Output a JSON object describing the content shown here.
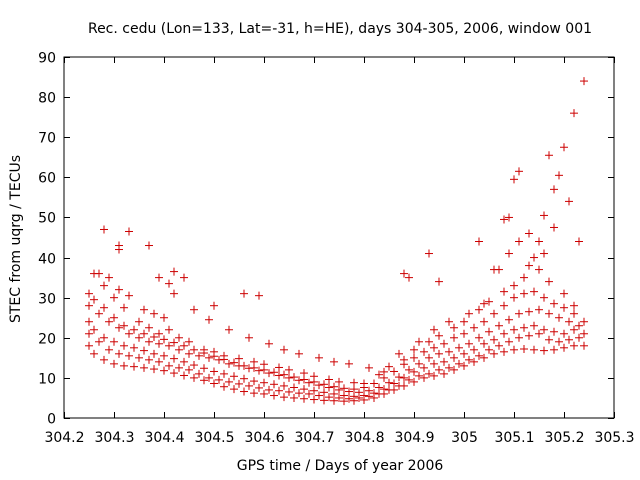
{
  "chart_data": {
    "type": "scatter",
    "title": "Rec. cedu (Lon=133, Lat=-31, h=HE), days 304-305, 2006, window 001",
    "xlabel": "GPS time / Days of year 2006",
    "ylabel": "STEC from uqrg / TECUs",
    "xlim": [
      304.2,
      305.3
    ],
    "ylim": [
      0,
      90
    ],
    "xticks": [
      304.2,
      304.3,
      304.4,
      304.5,
      304.6,
      304.7,
      304.8,
      304.9,
      305,
      305.1,
      305.2,
      305.3
    ],
    "xtick_labels": [
      "304.2",
      "304.3",
      "304.4",
      "304.5",
      "304.6",
      "304.7",
      "304.8",
      "304.9",
      "305",
      "305.1",
      "305.2",
      "305.3"
    ],
    "yticks": [
      0,
      10,
      20,
      30,
      40,
      50,
      60,
      70,
      80,
      90
    ],
    "ytick_labels": [
      "0",
      "10",
      "20",
      "30",
      "40",
      "50",
      "60",
      "70",
      "80",
      "90"
    ],
    "grid": false,
    "marker": "+",
    "color": "#cc0000",
    "series": [
      {
        "name": "STEC",
        "x": [
          304.25,
          304.26,
          304.28,
          304.3,
          304.32,
          304.34,
          304.36,
          304.38,
          304.4,
          304.42,
          304.44,
          304.46,
          304.48,
          304.5,
          304.52,
          304.54,
          304.56,
          304.58,
          304.6,
          304.62,
          304.64,
          304.66,
          304.68,
          304.7,
          304.72,
          304.74,
          304.76,
          304.78,
          304.8,
          304.82,
          304.84,
          304.86,
          304.88,
          304.9,
          304.92,
          304.94,
          304.96,
          304.98,
          305.0,
          305.02,
          305.04,
          305.06,
          305.08,
          305.1,
          305.12,
          305.14,
          305.16,
          305.18,
          305.2,
          305.22,
          305.24,
          304.25,
          304.27,
          304.29,
          304.31,
          304.33,
          304.35,
          304.37,
          304.39,
          304.41,
          304.43,
          304.45,
          304.47,
          304.49,
          304.51,
          304.53,
          304.55,
          304.57,
          304.59,
          304.61,
          304.63,
          304.65,
          304.67,
          304.69,
          304.71,
          304.73,
          304.75,
          304.77,
          304.79,
          304.81,
          304.83,
          304.85,
          304.87,
          304.89,
          304.91,
          304.93,
          304.95,
          304.97,
          304.99,
          305.01,
          305.03,
          305.05,
          305.07,
          305.09,
          305.11,
          305.13,
          305.15,
          305.17,
          305.19,
          305.21,
          305.23,
          304.25,
          304.26,
          304.28,
          304.3,
          304.32,
          304.34,
          304.36,
          304.38,
          304.4,
          304.42,
          304.44,
          304.46,
          304.48,
          304.5,
          304.52,
          304.54,
          304.56,
          304.58,
          304.6,
          304.62,
          304.64,
          304.66,
          304.68,
          304.7,
          304.72,
          304.74,
          304.76,
          304.78,
          304.8,
          304.82,
          304.84,
          304.86,
          304.88,
          304.9,
          304.92,
          304.94,
          304.96,
          304.98,
          305.0,
          305.02,
          305.04,
          305.06,
          305.08,
          305.1,
          305.12,
          305.14,
          305.16,
          305.18,
          305.2,
          305.22,
          305.24,
          304.25,
          304.27,
          304.29,
          304.31,
          304.33,
          304.35,
          304.37,
          304.39,
          304.41,
          304.43,
          304.45,
          304.47,
          304.49,
          304.51,
          304.53,
          304.55,
          304.57,
          304.59,
          304.61,
          304.63,
          304.65,
          304.67,
          304.69,
          304.71,
          304.73,
          304.75,
          304.77,
          304.79,
          304.81,
          304.83,
          304.85,
          304.87,
          304.89,
          304.91,
          304.93,
          304.95,
          304.97,
          304.99,
          305.01,
          305.03,
          305.05,
          305.07,
          305.09,
          305.11,
          305.13,
          305.15,
          305.17,
          305.19,
          305.21,
          305.23,
          304.25,
          304.26,
          304.28,
          304.3,
          304.32,
          304.34,
          304.36,
          304.38,
          304.4,
          304.42,
          304.44,
          304.46,
          304.48,
          304.5,
          304.52,
          304.54,
          304.56,
          304.58,
          304.6,
          304.62,
          304.64,
          304.66,
          304.68,
          304.7,
          304.72,
          304.74,
          304.76,
          304.78,
          304.8,
          304.82,
          304.84,
          304.86,
          304.88,
          304.9,
          304.92,
          304.94,
          304.96,
          304.98,
          305.0,
          305.02,
          305.04,
          305.06,
          305.08,
          305.1,
          305.12,
          305.14,
          305.16,
          305.18,
          305.2,
          305.22,
          305.24,
          304.26,
          304.28,
          304.3,
          304.32,
          304.35,
          304.37,
          304.39,
          304.41,
          304.43,
          304.45,
          304.48,
          304.5,
          304.52,
          304.55,
          304.58,
          304.6,
          304.63,
          304.65,
          304.68,
          304.7,
          304.73,
          304.75,
          304.78,
          304.8,
          304.83,
          304.85,
          304.88,
          304.9,
          304.93,
          304.95,
          304.98,
          305.0,
          305.03,
          305.05,
          305.08,
          305.1,
          305.12,
          305.15,
          305.17,
          305.2,
          305.22,
          304.27,
          304.29,
          304.31,
          304.33,
          304.36,
          304.38,
          304.4,
          304.42,
          304.46,
          304.49,
          304.53,
          304.57,
          304.61,
          304.64,
          304.67,
          304.71,
          304.74,
          304.77,
          304.81,
          304.84,
          304.87,
          304.91,
          304.94,
          304.97,
          305.01,
          305.04,
          305.07,
          305.09,
          305.11,
          305.13,
          305.16,
          305.18,
          305.21,
          305.23,
          304.28,
          304.31,
          304.31,
          304.33,
          304.37,
          304.39,
          304.41,
          304.42,
          304.44,
          304.5,
          304.56,
          304.59,
          304.88,
          304.89,
          304.93,
          304.95,
          305.03,
          305.06,
          305.08,
          305.09,
          305.1,
          305.11,
          305.13,
          305.14,
          305.15,
          305.16,
          305.17,
          305.18,
          305.19,
          305.2,
          305.22,
          305.24
        ],
        "y": [
          18,
          16,
          14.5,
          13.5,
          13,
          12.8,
          12.5,
          12.2,
          11.8,
          11.2,
          10.6,
          10,
          9.4,
          8.6,
          7.8,
          7.2,
          6.6,
          6.2,
          6,
          5.6,
          5.2,
          5,
          4.8,
          4.6,
          4.4,
          4.3,
          4.2,
          4.3,
          4.5,
          5,
          6,
          7,
          8,
          9,
          10,
          10.5,
          11,
          12,
          13,
          14,
          15,
          16,
          16.5,
          17,
          17.2,
          17,
          16.8,
          17,
          17.5,
          18,
          18,
          21,
          19,
          17,
          16,
          15.5,
          15,
          14.5,
          14,
          13,
          12.5,
          12,
          11,
          10,
          9.5,
          9,
          8.5,
          8,
          7.5,
          7,
          6.8,
          6.5,
          6.2,
          6,
          5.6,
          5.2,
          5,
          4.8,
          5,
          5.4,
          6,
          7,
          8,
          9.5,
          10.5,
          11,
          12,
          12.5,
          13.5,
          14.5,
          15.5,
          17,
          18,
          19,
          20,
          20.5,
          21,
          19.5,
          19,
          19.5,
          20,
          24,
          22,
          20,
          19,
          18,
          17.5,
          16.8,
          16,
          15.5,
          14.8,
          14,
          13.2,
          12.4,
          11.6,
          11,
          10.4,
          9.8,
          9.2,
          8.8,
          8.4,
          8,
          7.6,
          7.2,
          6.8,
          6.4,
          6,
          5.6,
          5.4,
          5.6,
          6.2,
          7.2,
          8.6,
          10,
          11.5,
          12.5,
          13.5,
          14,
          15,
          16,
          17,
          18.5,
          19.5,
          21,
          22,
          22.5,
          23,
          22,
          21.5,
          21,
          22,
          21,
          28,
          26,
          24,
          22.5,
          21,
          20,
          19,
          18.5,
          18,
          17,
          16,
          15.5,
          15,
          14.5,
          13.5,
          13,
          12.4,
          11.8,
          11.2,
          10.6,
          10,
          9.4,
          8.8,
          8.2,
          7.6,
          7,
          6.6,
          6.4,
          6.8,
          7.6,
          8.8,
          10.2,
          12,
          13.5,
          15,
          16,
          16.5,
          17.5,
          18.5,
          20,
          21.5,
          23,
          24.5,
          26,
          26.5,
          27,
          26,
          25,
          24,
          23,
          31,
          29.5,
          27.5,
          25,
          23,
          22,
          21,
          20.2,
          19.6,
          18.8,
          18,
          17,
          16.2,
          15.4,
          14.6,
          13.8,
          13,
          12.5,
          12,
          11.4,
          10.8,
          10.2,
          9.6,
          9,
          8.4,
          7.8,
          7.4,
          7.2,
          7.6,
          8.6,
          10,
          11.6,
          13.4,
          15,
          16.5,
          17.5,
          18.5,
          20,
          21,
          22.5,
          24,
          26,
          28,
          30,
          31,
          31.5,
          30,
          28.5,
          27.5,
          26,
          24,
          36,
          33,
          30,
          27.5,
          24,
          22.5,
          21,
          22,
          20,
          19,
          17,
          16.5,
          15.5,
          14.8,
          14,
          13.4,
          12.6,
          12,
          11.2,
          10.4,
          9.6,
          9,
          8.8,
          8.6,
          10.8,
          12.8,
          14.5,
          17,
          19,
          20.5,
          22.5,
          24,
          27,
          29,
          31.5,
          33,
          35,
          37,
          34,
          31,
          28,
          36,
          35,
          32,
          30.5,
          27,
          26,
          25,
          31,
          27,
          24.5,
          22,
          20,
          18.5,
          17,
          16,
          15,
          14,
          13.5,
          12.5,
          11.5,
          16,
          19,
          22,
          24,
          26,
          28.5,
          37,
          41,
          44,
          38,
          41,
          47.5,
          54,
          44,
          47,
          42,
          43,
          46.5,
          43,
          35,
          33.5,
          36.5,
          35,
          28,
          31,
          30.5,
          36,
          35,
          41,
          34,
          44,
          37,
          49.5,
          50,
          59.5,
          61.5,
          46,
          40,
          44,
          50.5,
          65.5,
          57,
          60.5,
          67.5,
          76,
          84
        ]
      }
    ]
  }
}
